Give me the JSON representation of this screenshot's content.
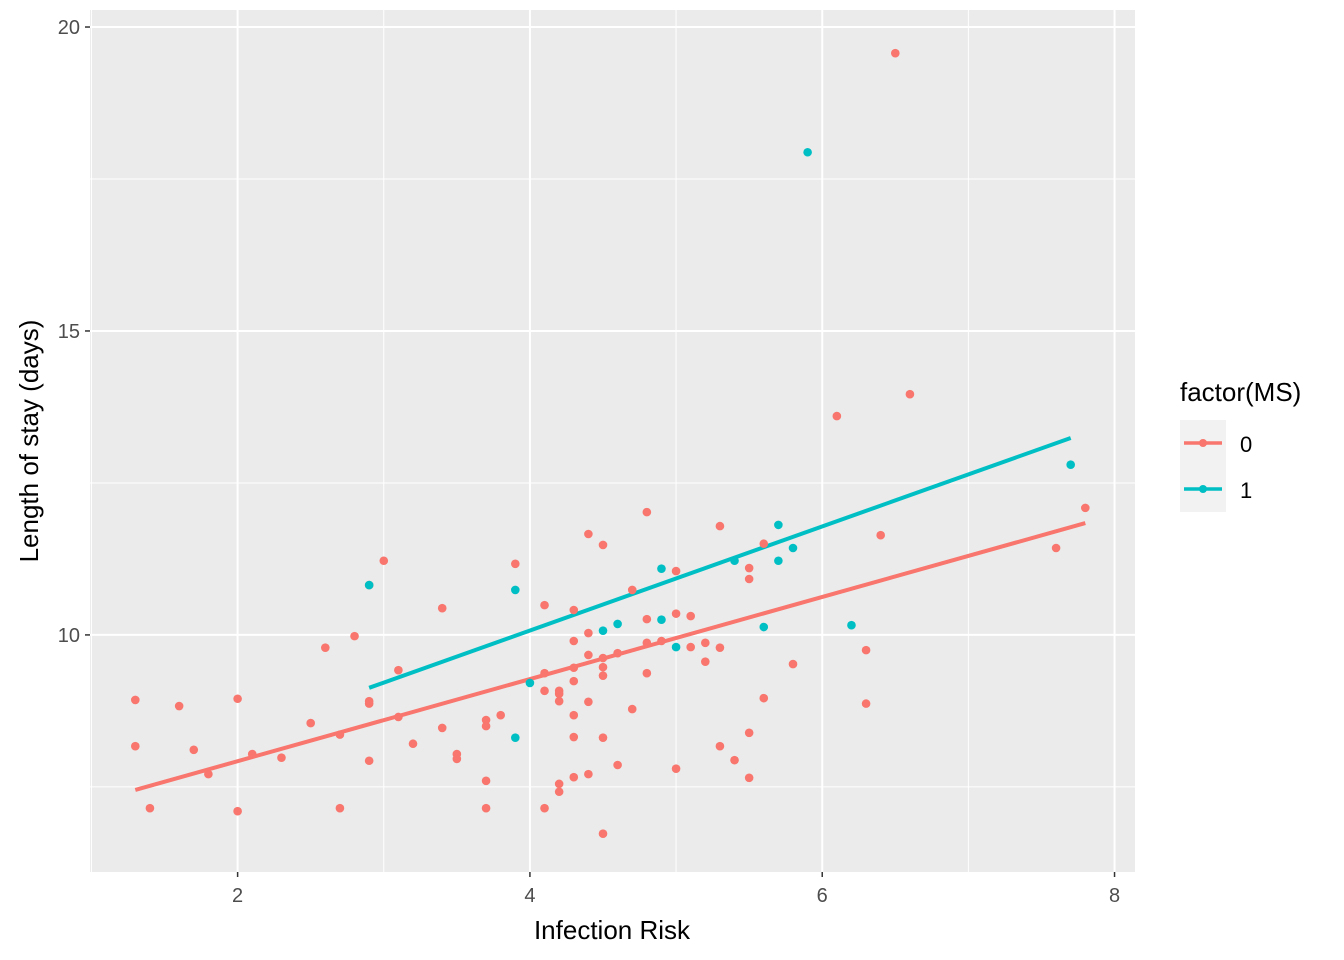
{
  "chart_data": {
    "type": "scatter",
    "title": "",
    "xlabel": "Infection Risk",
    "ylabel": "Length of stay (days)",
    "xlim": [
      0.99,
      8.14
    ],
    "ylim": [
      6.1,
      20.28
    ],
    "xticks": [
      2,
      4,
      6,
      8
    ],
    "yticks": [
      10,
      15,
      20
    ],
    "grid": true,
    "legend": {
      "title": "factor(MS)",
      "placement": "right",
      "entries": [
        "0",
        "1"
      ]
    },
    "colors": {
      "0": "#F8766D",
      "1": "#00BFC4",
      "panel": "#EBEBEB",
      "grid": "#FFFFFF"
    },
    "series": [
      {
        "name": "0",
        "points": [
          [
            1.3,
            8.93
          ],
          [
            1.3,
            8.17
          ],
          [
            1.4,
            7.15
          ],
          [
            1.6,
            8.83
          ],
          [
            1.7,
            8.11
          ],
          [
            1.8,
            7.71
          ],
          [
            2.0,
            8.95
          ],
          [
            2.0,
            7.1
          ],
          [
            2.1,
            8.04
          ],
          [
            2.3,
            7.98
          ],
          [
            2.5,
            8.55
          ],
          [
            2.6,
            9.79
          ],
          [
            2.7,
            8.36
          ],
          [
            2.7,
            7.15
          ],
          [
            2.8,
            9.98
          ],
          [
            2.9,
            10.82
          ],
          [
            2.9,
            8.91
          ],
          [
            2.9,
            8.87
          ],
          [
            2.9,
            7.93
          ],
          [
            3.0,
            11.22
          ],
          [
            3.1,
            9.42
          ],
          [
            3.1,
            8.65
          ],
          [
            3.2,
            8.21
          ],
          [
            3.4,
            10.44
          ],
          [
            3.4,
            8.47
          ],
          [
            3.5,
            8.04
          ],
          [
            3.5,
            7.96
          ],
          [
            3.7,
            8.6
          ],
          [
            3.7,
            8.5
          ],
          [
            3.7,
            7.6
          ],
          [
            3.7,
            7.15
          ],
          [
            3.8,
            8.68
          ],
          [
            3.9,
            11.17
          ],
          [
            4.1,
            10.49
          ],
          [
            4.1,
            9.37
          ],
          [
            4.1,
            9.08
          ],
          [
            4.1,
            7.15
          ],
          [
            4.2,
            9.08
          ],
          [
            4.2,
            9.03
          ],
          [
            4.2,
            8.91
          ],
          [
            4.2,
            7.55
          ],
          [
            4.2,
            7.42
          ],
          [
            4.3,
            10.41
          ],
          [
            4.3,
            9.9
          ],
          [
            4.3,
            9.46
          ],
          [
            4.3,
            9.24
          ],
          [
            4.3,
            8.68
          ],
          [
            4.3,
            8.32
          ],
          [
            4.3,
            7.66
          ],
          [
            4.4,
            11.66
          ],
          [
            4.4,
            10.03
          ],
          [
            4.4,
            9.67
          ],
          [
            4.4,
            8.9
          ],
          [
            4.4,
            7.71
          ],
          [
            4.5,
            11.48
          ],
          [
            4.5,
            9.62
          ],
          [
            4.5,
            9.47
          ],
          [
            4.5,
            9.33
          ],
          [
            4.5,
            8.31
          ],
          [
            4.5,
            6.73
          ],
          [
            4.6,
            9.7
          ],
          [
            4.6,
            7.86
          ],
          [
            4.7,
            10.74
          ],
          [
            4.7,
            8.78
          ],
          [
            4.8,
            12.02
          ],
          [
            4.8,
            10.26
          ],
          [
            4.8,
            9.87
          ],
          [
            4.8,
            9.37
          ],
          [
            4.9,
            9.9
          ],
          [
            5.0,
            11.05
          ],
          [
            5.0,
            10.35
          ],
          [
            5.0,
            7.8
          ],
          [
            5.1,
            10.31
          ],
          [
            5.1,
            9.8
          ],
          [
            5.2,
            9.87
          ],
          [
            5.2,
            9.56
          ],
          [
            5.3,
            11.79
          ],
          [
            5.3,
            9.79
          ],
          [
            5.3,
            8.17
          ],
          [
            5.4,
            7.94
          ],
          [
            5.5,
            11.1
          ],
          [
            5.5,
            10.92
          ],
          [
            5.5,
            8.39
          ],
          [
            5.5,
            7.65
          ],
          [
            5.6,
            11.5
          ],
          [
            5.6,
            8.96
          ],
          [
            5.8,
            9.52
          ],
          [
            6.1,
            13.6
          ],
          [
            6.3,
            9.75
          ],
          [
            6.3,
            8.87
          ],
          [
            6.4,
            11.64
          ],
          [
            6.5,
            19.57
          ],
          [
            6.6,
            13.96
          ],
          [
            7.6,
            11.43
          ],
          [
            7.8,
            12.09
          ]
        ],
        "fit": [
          [
            1.3,
            7.45
          ],
          [
            7.8,
            11.84
          ]
        ]
      },
      {
        "name": "1",
        "points": [
          [
            2.9,
            10.82
          ],
          [
            3.9,
            10.74
          ],
          [
            3.9,
            8.31
          ],
          [
            4.0,
            9.21
          ],
          [
            4.5,
            10.07
          ],
          [
            4.6,
            10.18
          ],
          [
            4.9,
            11.09
          ],
          [
            4.9,
            10.25
          ],
          [
            5.0,
            9.8
          ],
          [
            5.4,
            11.22
          ],
          [
            5.7,
            11.81
          ],
          [
            5.7,
            11.22
          ],
          [
            5.6,
            10.13
          ],
          [
            5.8,
            11.43
          ],
          [
            5.9,
            17.94
          ],
          [
            6.2,
            10.16
          ],
          [
            7.7,
            12.8
          ]
        ],
        "fit": [
          [
            2.9,
            9.13
          ],
          [
            7.7,
            13.24
          ]
        ]
      }
    ]
  }
}
